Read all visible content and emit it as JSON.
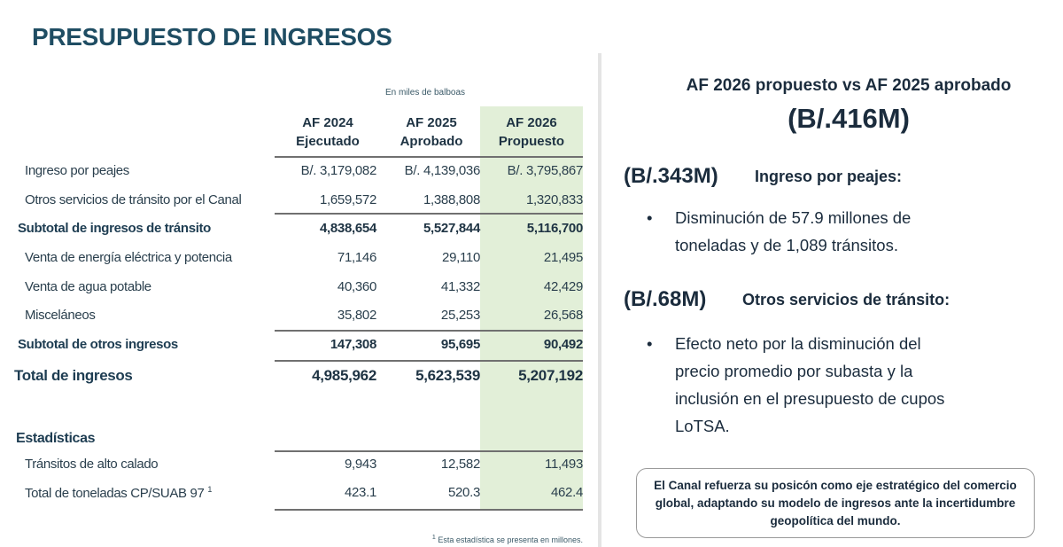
{
  "title": "PRESUPUESTO DE INGRESOS",
  "table": {
    "unit_note": "En miles de balboas",
    "columns": [
      {
        "year": "AF 2024",
        "status": "Ejecutado"
      },
      {
        "year": "AF 2025",
        "status": "Aprobado"
      },
      {
        "year": "AF 2026",
        "status": "Propuesto",
        "highlight": "#e2efd8"
      }
    ],
    "rows": [
      {
        "label": "Ingreso por peajes",
        "values": [
          "B/. 3,179,082",
          "B/. 4,139,036",
          "B/. 3,795,867"
        ],
        "bold": false
      },
      {
        "label": "Otros servicios de tránsito por el Canal",
        "values": [
          "1,659,572",
          "1,388,808",
          "1,320,833"
        ],
        "bold": false
      },
      {
        "label": "Subtotal de ingresos de tránsito",
        "values": [
          "4,838,654",
          "5,527,844",
          "5,116,700"
        ],
        "bold": true
      },
      {
        "label": "Venta de energía eléctrica y potencia",
        "values": [
          "71,146",
          "29,110",
          "21,495"
        ],
        "bold": false
      },
      {
        "label": "Venta de agua potable",
        "values": [
          "40,360",
          "41,332",
          "42,429"
        ],
        "bold": false
      },
      {
        "label": "Misceláneos",
        "values": [
          "35,802",
          "25,253",
          "26,568"
        ],
        "bold": false
      },
      {
        "label": "Subtotal de otros ingresos",
        "values": [
          "147,308",
          "95,695",
          "90,492"
        ],
        "bold": true
      },
      {
        "label": "Total de ingresos",
        "values": [
          "4,985,962",
          "5,623,539",
          "5,207,192"
        ],
        "bold": true
      }
    ],
    "stats_heading": "Estadísticas",
    "stats_rows": [
      {
        "label": "Tránsitos de alto calado",
        "values": [
          "9,943",
          "12,582",
          "11,493"
        ]
      },
      {
        "label": "Total de toneladas CP/SUAB 97",
        "sup": "1",
        "values": [
          "423.1",
          "520.3",
          "462.4"
        ]
      }
    ],
    "footnote_mark": "1",
    "footnote": "Esta estadística se presenta en millones."
  },
  "summary": {
    "heading": "AF 2026 propuesto vs AF 2025 aprobado",
    "total": "(B/.416M)",
    "sections": [
      {
        "amount": "(B/.343M)",
        "label": "Ingreso por peajes:",
        "bullet": "•",
        "lines": [
          "Disminución de 57.9 millones de",
          "toneladas y de 1,089 tránsitos."
        ]
      },
      {
        "amount": "(B/.68M)",
        "label": "Otros servicios de tránsito:",
        "bullet": "•",
        "lines": [
          "Efecto neto por la disminución del",
          "precio promedio por subasta y la",
          "inclusión en el presupuesto de cupos",
          "LoTSA."
        ]
      }
    ],
    "callout": "El Canal  refuerza su posicón como eje estratégico del comercio global, adaptando su modelo de ingresos ante la incertidumbre geopolítica del mundo."
  }
}
